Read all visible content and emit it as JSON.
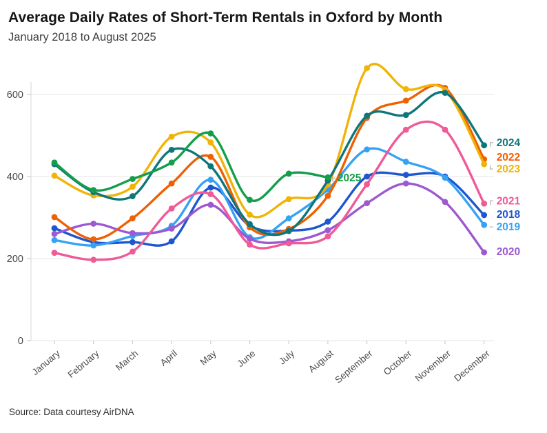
{
  "header": {
    "title": "Average Daily Rates of Short-Term Rentals in Oxford by Month",
    "subtitle": "January 2018 to August 2025"
  },
  "footer": {
    "source": "Source: Data courtesy AirDNA"
  },
  "chart_data": {
    "type": "line",
    "title": "Average Daily Rates of Short-Term Rentals in Oxford by Month",
    "subtitle": "January 2018 to August 2025",
    "categories": [
      "January",
      "February",
      "March",
      "April",
      "May",
      "June",
      "July",
      "August",
      "September",
      "October",
      "November",
      "December"
    ],
    "xlabel": "",
    "ylabel": "",
    "ylim": [
      0,
      700
    ],
    "yticks": [
      0,
      200,
      400,
      600
    ],
    "grid": true,
    "legend_position": "right-edge-labels",
    "series": [
      {
        "name": "2018",
        "color": "#1e56cf",
        "values": [
          274,
          240,
          240,
          242,
          373,
          280,
          268,
          290,
          400,
          404,
          400,
          306
        ]
      },
      {
        "name": "2019",
        "color": "#35a2f5",
        "values": [
          245,
          232,
          255,
          280,
          392,
          252,
          298,
          368,
          466,
          436,
          397,
          282
        ]
      },
      {
        "name": "2020",
        "color": "#9c59d1",
        "values": [
          260,
          285,
          262,
          273,
          331,
          248,
          242,
          269,
          335,
          383,
          338,
          215
        ]
      },
      {
        "name": "2021",
        "color": "#ef5a97",
        "values": [
          214,
          197,
          217,
          322,
          357,
          234,
          237,
          254,
          381,
          514,
          514,
          334
        ]
      },
      {
        "name": "2022",
        "color": "#ee6002",
        "values": [
          301,
          247,
          298,
          383,
          448,
          276,
          272,
          353,
          543,
          585,
          616,
          442
        ]
      },
      {
        "name": "2023",
        "color": "#f0b408",
        "values": [
          402,
          354,
          375,
          497,
          483,
          307,
          345,
          380,
          664,
          613,
          611,
          430
        ]
      },
      {
        "name": "2024",
        "color": "#0d767c",
        "values": [
          430,
          362,
          352,
          465,
          425,
          284,
          267,
          390,
          548,
          550,
          604,
          476
        ]
      },
      {
        "name": "2025",
        "color": "#149e4c",
        "values": [
          434,
          367,
          394,
          434,
          505,
          343,
          407,
          398
        ],
        "inline_label": true
      }
    ]
  }
}
